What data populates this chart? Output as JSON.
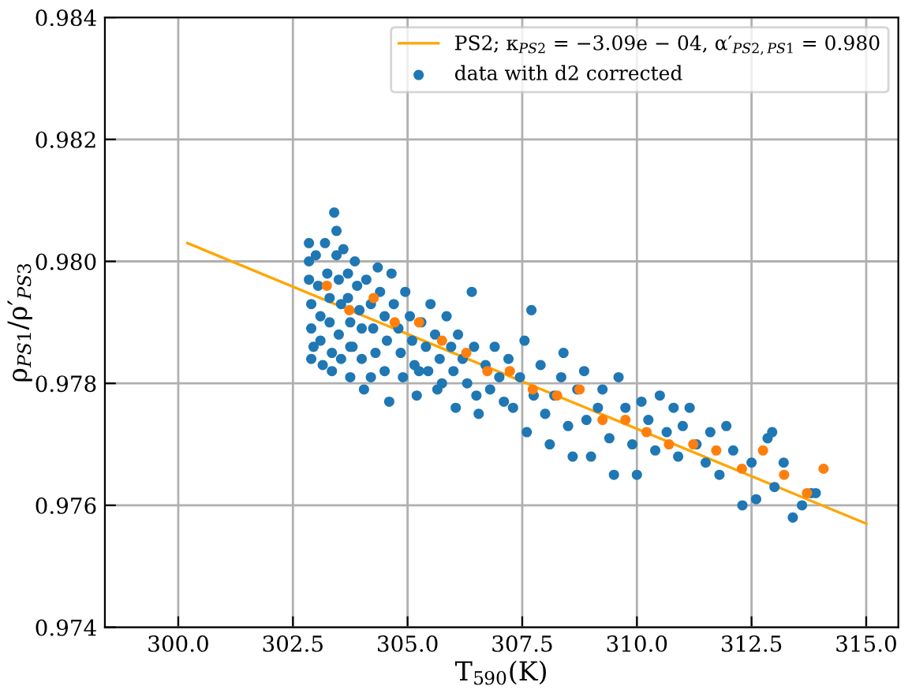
{
  "chart_data": {
    "type": "scatter",
    "xlabel": "T$_{590}$(K)",
    "ylabel": "ρ$_{PS1}$/ρ′$_{PS3}$",
    "xlim": [
      298.4,
      315.7
    ],
    "xticks": [
      {
        "value": 300,
        "label": "300.0"
      },
      {
        "value": 302.5,
        "label": "302.5"
      },
      {
        "value": 305,
        "label": "305.0"
      },
      {
        "value": 307.5,
        "label": "307.5"
      },
      {
        "value": 310,
        "label": "310.0"
      },
      {
        "value": 312.5,
        "label": "312.5"
      },
      {
        "value": 315,
        "label": "315.0"
      }
    ],
    "ylim": [
      0.974,
      0.984
    ],
    "yticks": [
      {
        "value": 0.974,
        "label": "0.974"
      },
      {
        "value": 0.976,
        "label": "0.976"
      },
      {
        "value": 0.978,
        "label": "0.978"
      },
      {
        "value": 0.98,
        "label": "0.980"
      },
      {
        "value": 0.982,
        "label": "0.982"
      },
      {
        "value": 0.984,
        "label": "0.984"
      }
    ],
    "grid": true,
    "legend": "top right",
    "marker": "circle",
    "series": [
      {
        "type": "line",
        "marker": "none",
        "name": "PS2; κ$_{PS2}$ = −3.09e − 04, α′$_{PS2,PS1}$ = 0.980",
        "color": "#ffa500",
        "x": [
          300.2,
          315.0
        ],
        "values": [
          0.9803,
          0.9757
        ]
      },
      {
        "type": "scatter",
        "name": "data with d2 corrected",
        "color": "#1f77b4",
        "x": [
          302.85,
          302.85,
          302.85,
          302.9,
          302.9,
          302.95,
          302.9,
          303.0,
          303.05,
          303.1,
          303.1,
          303.15,
          303.2,
          303.25,
          303.3,
          303.3,
          303.35,
          303.35,
          303.4,
          303.45,
          303.45,
          303.5,
          303.55,
          303.5,
          303.55,
          303.6,
          303.7,
          303.7,
          303.75,
          303.8,
          303.75,
          303.85,
          303.9,
          303.95,
          304.0,
          304.0,
          304.05,
          304.1,
          304.2,
          304.25,
          304.3,
          304.2,
          304.35,
          304.4,
          304.5,
          304.55,
          304.5,
          304.6,
          304.65,
          304.7,
          304.8,
          304.85,
          304.9,
          304.95,
          305.05,
          305.1,
          305.15,
          305.2,
          305.3,
          305.4,
          305.45,
          305.5,
          305.6,
          305.7,
          305.75,
          305.85,
          305.95,
          306.0,
          306.05,
          306.1,
          306.2,
          306.3,
          306.4,
          306.45,
          306.5,
          306.55,
          306.7,
          306.8,
          306.9,
          307.0,
          307.1,
          307.2,
          307.3,
          307.45,
          307.55,
          307.7,
          307.6,
          307.75,
          307.9,
          308.0,
          308.1,
          308.2,
          308.35,
          308.4,
          308.5,
          308.6,
          308.7,
          308.85,
          308.9,
          309.0,
          309.15,
          309.25,
          309.4,
          309.5,
          309.6,
          309.75,
          309.9,
          310.0,
          310.1,
          310.25,
          310.4,
          310.5,
          310.65,
          310.8,
          310.9,
          311.0,
          311.15,
          311.3,
          311.5,
          311.6,
          311.8,
          311.95,
          312.1,
          312.3,
          312.5,
          312.6,
          312.85,
          312.95,
          313.0,
          313.2,
          313.4,
          313.6,
          313.8,
          313.9,
          303.75,
          305.25,
          305.65
        ],
        "values": [
          0.9803,
          0.98,
          0.9797,
          0.9793,
          0.9789,
          0.9786,
          0.9784,
          0.9801,
          0.9796,
          0.9791,
          0.9787,
          0.9783,
          0.9803,
          0.9798,
          0.9794,
          0.979,
          0.9785,
          0.9782,
          0.9808,
          0.9805,
          0.9801,
          0.9797,
          0.9793,
          0.9788,
          0.9784,
          0.9802,
          0.9798,
          0.9794,
          0.979,
          0.9786,
          0.9781,
          0.98,
          0.9796,
          0.9792,
          0.9789,
          0.9784,
          0.9779,
          0.9797,
          0.9793,
          0.9789,
          0.9785,
          0.9781,
          0.9799,
          0.9795,
          0.9791,
          0.9787,
          0.9782,
          0.9777,
          0.9798,
          0.9793,
          0.9789,
          0.9785,
          0.9781,
          0.9795,
          0.9791,
          0.9787,
          0.9783,
          0.9778,
          0.979,
          0.9786,
          0.9782,
          0.9793,
          0.9788,
          0.9784,
          0.978,
          0.9791,
          0.9786,
          0.9782,
          0.9776,
          0.9788,
          0.9784,
          0.978,
          0.9795,
          0.9786,
          0.9778,
          0.9775,
          0.9783,
          0.9779,
          0.9786,
          0.9781,
          0.9777,
          0.9784,
          0.9776,
          0.9781,
          0.9787,
          0.9792,
          0.9772,
          0.9778,
          0.9783,
          0.9775,
          0.977,
          0.9778,
          0.9781,
          0.9785,
          0.9773,
          0.9768,
          0.9779,
          0.9782,
          0.9774,
          0.9768,
          0.9776,
          0.9779,
          0.9771,
          0.9765,
          0.9781,
          0.9776,
          0.977,
          0.9765,
          0.9777,
          0.9774,
          0.9769,
          0.9778,
          0.9772,
          0.9776,
          0.9768,
          0.9773,
          0.9776,
          0.977,
          0.9767,
          0.9772,
          0.9765,
          0.9773,
          0.9769,
          0.976,
          0.9767,
          0.9761,
          0.9771,
          0.9772,
          0.9763,
          0.9767,
          0.9758,
          0.976,
          0.9762,
          0.9762,
          0.9786,
          0.9782,
          0.9779
        ]
      },
      {
        "type": "scatter",
        "color": "#ff7f0e",
        "x": [
          303.24,
          303.73,
          304.26,
          304.72,
          305.25,
          305.75,
          306.28,
          306.74,
          307.23,
          307.73,
          308.26,
          308.75,
          309.25,
          309.75,
          310.21,
          310.7,
          311.23,
          311.73,
          312.29,
          312.75,
          313.21,
          313.71,
          314.07
        ],
        "values": [
          0.9796,
          0.9792,
          0.9794,
          0.979,
          0.979,
          0.9787,
          0.9785,
          0.9782,
          0.9782,
          0.9779,
          0.9778,
          0.9779,
          0.9774,
          0.9774,
          0.9772,
          0.977,
          0.977,
          0.9769,
          0.9766,
          0.9769,
          0.9765,
          0.9762,
          0.9766
        ]
      }
    ]
  }
}
